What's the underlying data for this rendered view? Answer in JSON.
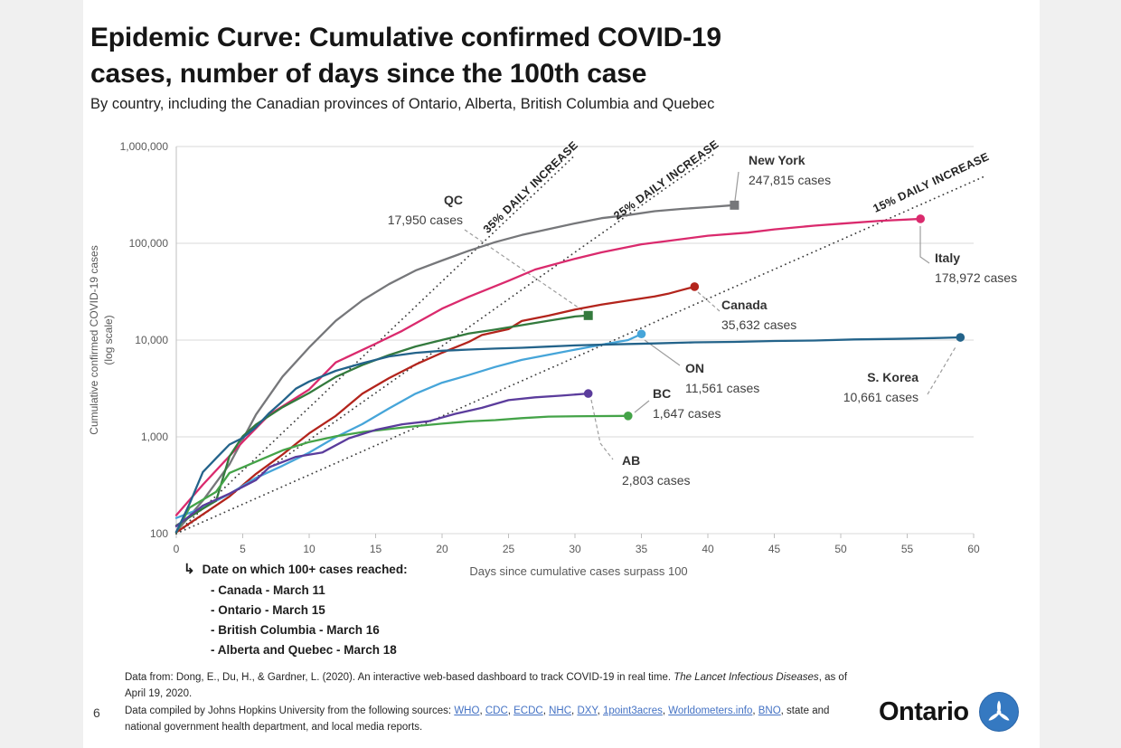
{
  "page": {
    "number": "6"
  },
  "header": {
    "title_line1": "Epidemic Curve: Cumulative confirmed COVID-19",
    "title_line2": "cases, number of days since the 100th case",
    "subtitle": "By country, including the Canadian provinces of Ontario, Alberta, British Columbia and Quebec"
  },
  "chart_data": {
    "type": "line",
    "xlabel": "Days since cumulative cases surpass 100",
    "ylabel": "Cumulative confirmed COVID-19 cases",
    "ylabel_note": "(log scale)",
    "x_ticks": [
      0,
      5,
      10,
      15,
      20,
      25,
      30,
      35,
      40,
      45,
      50,
      55,
      60
    ],
    "xlim": [
      0,
      60
    ],
    "y_scale": "log",
    "ylim": [
      100,
      1000000
    ],
    "y_ticks": [
      {
        "label": "100",
        "v": 100
      },
      {
        "label": "1,000",
        "v": 1000
      },
      {
        "label": "10,000",
        "v": 10000
      },
      {
        "label": "100,000",
        "v": 100000
      },
      {
        "label": "1,000,000",
        "v": 1000000
      }
    ],
    "grid": "horizontal",
    "legend": "end-of-line callout labels",
    "reference_lines": [
      {
        "label": "35% DAILY INCREASE",
        "rate_pct_per_day": 35
      },
      {
        "label": "25% DAILY INCREASE",
        "rate_pct_per_day": 25
      },
      {
        "label": "15% DAILY INCREASE",
        "rate_pct_per_day": 15
      }
    ],
    "series": [
      {
        "name": "New York",
        "label": "New York",
        "final_day": 42,
        "final_cases": 247815,
        "cases_label": "247,815 cases",
        "color": "#76777a",
        "marker": "square",
        "points": [
          [
            0,
            105
          ],
          [
            2,
            220
          ],
          [
            4,
            520
          ],
          [
            6,
            1700
          ],
          [
            8,
            4200
          ],
          [
            10,
            8400
          ],
          [
            12,
            15800
          ],
          [
            14,
            25700
          ],
          [
            16,
            37800
          ],
          [
            18,
            52300
          ],
          [
            20,
            66500
          ],
          [
            22,
            83700
          ],
          [
            24,
            102900
          ],
          [
            26,
            122000
          ],
          [
            28,
            139900
          ],
          [
            30,
            160500
          ],
          [
            32,
            181800
          ],
          [
            34,
            195700
          ],
          [
            36,
            214500
          ],
          [
            38,
            226300
          ],
          [
            40,
            236700
          ],
          [
            42,
            247815
          ]
        ]
      },
      {
        "name": "Italy",
        "label": "Italy",
        "final_day": 56,
        "final_cases": 178972,
        "cases_label": "178,972 cases",
        "color": "#da2a6d",
        "marker": "circle",
        "points": [
          [
            0,
            155
          ],
          [
            2,
            320
          ],
          [
            5,
            888
          ],
          [
            7,
            1694
          ],
          [
            10,
            3089
          ],
          [
            12,
            5883
          ],
          [
            15,
            9172
          ],
          [
            17,
            12462
          ],
          [
            20,
            21157
          ],
          [
            22,
            27980
          ],
          [
            25,
            41035
          ],
          [
            27,
            53578
          ],
          [
            30,
            69176
          ],
          [
            32,
            80589
          ],
          [
            35,
            97689
          ],
          [
            37,
            105792
          ],
          [
            40,
            119827
          ],
          [
            43,
            128948
          ],
          [
            45,
            139422
          ],
          [
            48,
            152271
          ],
          [
            50,
            159516
          ],
          [
            53,
            170945
          ],
          [
            56,
            178972
          ]
        ]
      },
      {
        "name": "Canada",
        "label": "Canada",
        "final_day": 39,
        "final_cases": 35632,
        "cases_label": "35,632 cases",
        "color": "#b3241c",
        "marker": "circle",
        "points": [
          [
            0,
            103
          ],
          [
            2,
            158
          ],
          [
            4,
            242
          ],
          [
            6,
            415
          ],
          [
            8,
            657
          ],
          [
            10,
            1087
          ],
          [
            12,
            1646
          ],
          [
            14,
            2790
          ],
          [
            16,
            4043
          ],
          [
            18,
            5576
          ],
          [
            20,
            7398
          ],
          [
            22,
            9560
          ],
          [
            23,
            11283
          ],
          [
            25,
            12978
          ],
          [
            26,
            15756
          ],
          [
            28,
            17872
          ],
          [
            30,
            20654
          ],
          [
            32,
            23318
          ],
          [
            34,
            25680
          ],
          [
            36,
            28205
          ],
          [
            37,
            30106
          ],
          [
            38,
            32814
          ],
          [
            39,
            35632
          ]
        ]
      },
      {
        "name": "Ontario",
        "label": "ON",
        "final_day": 35,
        "final_cases": 11561,
        "cases_label": "11,561 cases",
        "color": "#46a5d9",
        "marker": "circle",
        "points": [
          [
            0,
            145
          ],
          [
            2,
            185
          ],
          [
            4,
            257
          ],
          [
            6,
            377
          ],
          [
            8,
            503
          ],
          [
            10,
            688
          ],
          [
            12,
            994
          ],
          [
            14,
            1355
          ],
          [
            16,
            1966
          ],
          [
            18,
            2793
          ],
          [
            20,
            3630
          ],
          [
            22,
            4347
          ],
          [
            24,
            5276
          ],
          [
            26,
            6237
          ],
          [
            28,
            7049
          ],
          [
            30,
            7953
          ],
          [
            32,
            8961
          ],
          [
            34,
            10010
          ],
          [
            35,
            11561
          ]
        ]
      },
      {
        "name": "Quebec",
        "label": "QC",
        "final_day": 31,
        "final_cases": 17950,
        "cases_label": "17,950 cases",
        "color": "#337a3d",
        "marker": "square",
        "points": [
          [
            0,
            121
          ],
          [
            2,
            181
          ],
          [
            3,
            219
          ],
          [
            4,
            628
          ],
          [
            5,
            1013
          ],
          [
            6,
            1342
          ],
          [
            8,
            2024
          ],
          [
            10,
            2840
          ],
          [
            12,
            4162
          ],
          [
            14,
            5518
          ],
          [
            16,
            6997
          ],
          [
            18,
            8580
          ],
          [
            20,
            10031
          ],
          [
            22,
            11677
          ],
          [
            24,
            12846
          ],
          [
            26,
            14248
          ],
          [
            28,
            15857
          ],
          [
            30,
            17521
          ],
          [
            31,
            17950
          ]
        ]
      },
      {
        "name": "British Columbia",
        "label": "BC",
        "final_day": 34,
        "final_cases": 1647,
        "cases_label": "1,647 cases",
        "color": "#44a348",
        "marker": "circle",
        "points": [
          [
            0,
            103
          ],
          [
            1,
            186
          ],
          [
            3,
            271
          ],
          [
            4,
            424
          ],
          [
            6,
            554
          ],
          [
            8,
            725
          ],
          [
            10,
            884
          ],
          [
            12,
            1013
          ],
          [
            14,
            1121
          ],
          [
            16,
            1203
          ],
          [
            18,
            1291
          ],
          [
            20,
            1370
          ],
          [
            22,
            1445
          ],
          [
            24,
            1490
          ],
          [
            26,
            1561
          ],
          [
            28,
            1618
          ],
          [
            31,
            1638
          ],
          [
            34,
            1647
          ]
        ]
      },
      {
        "name": "Alberta",
        "label": "AB",
        "final_day": 31,
        "final_cases": 2803,
        "cases_label": "2,803 cases",
        "color": "#5b3c9c",
        "marker": "circle",
        "points": [
          [
            0,
            119
          ],
          [
            2,
            195
          ],
          [
            4,
            259
          ],
          [
            6,
            358
          ],
          [
            7,
            486
          ],
          [
            9,
            621
          ],
          [
            11,
            690
          ],
          [
            13,
            969
          ],
          [
            15,
            1181
          ],
          [
            17,
            1348
          ],
          [
            19,
            1451
          ],
          [
            21,
            1732
          ],
          [
            23,
            1996
          ],
          [
            25,
            2397
          ],
          [
            27,
            2562
          ],
          [
            29,
            2667
          ],
          [
            31,
            2803
          ]
        ]
      },
      {
        "name": "S. Korea",
        "label": "S. Korea",
        "final_day": 59,
        "final_cases": 10661,
        "cases_label": "10,661 cases",
        "color": "#23638a",
        "marker": "circle",
        "points": [
          [
            0,
            104
          ],
          [
            1,
            204
          ],
          [
            2,
            433
          ],
          [
            3,
            602
          ],
          [
            4,
            833
          ],
          [
            5,
            977
          ],
          [
            6,
            1261
          ],
          [
            7,
            1766
          ],
          [
            8,
            2337
          ],
          [
            9,
            3150
          ],
          [
            10,
            3736
          ],
          [
            12,
            4812
          ],
          [
            14,
            5766
          ],
          [
            16,
            6767
          ],
          [
            18,
            7382
          ],
          [
            20,
            7755
          ],
          [
            22,
            7979
          ],
          [
            24,
            8162
          ],
          [
            26,
            8320
          ],
          [
            28,
            8565
          ],
          [
            30,
            8799
          ],
          [
            33,
            9037
          ],
          [
            36,
            9241
          ],
          [
            39,
            9478
          ],
          [
            42,
            9583
          ],
          [
            45,
            9786
          ],
          [
            48,
            9887
          ],
          [
            51,
            10156
          ],
          [
            54,
            10284
          ],
          [
            57,
            10480
          ],
          [
            59,
            10661
          ]
        ]
      }
    ]
  },
  "notes": {
    "arrow_icon": "↳",
    "heading": "Date on which 100+ cases reached:",
    "items": [
      "- Canada - March 11",
      "- Ontario - March 15",
      "- British Columbia - March 16",
      "- Alberta and Quebec - March 18"
    ]
  },
  "footer": {
    "citation_prefix": "Data from: Dong, E., Du, H., & Gardner, L. (2020). An interactive web-based dashboard to track COVID-19 in real time. ",
    "citation_italic": "The Lancet Infectious Diseases",
    "citation_suffix": ", as of April 19, 2020.",
    "compiled_prefix": "Data compiled by Johns Hopkins University from the following sources: ",
    "sources": [
      "WHO",
      "CDC",
      "ECDC",
      "NHC",
      "DXY",
      "1point3acres",
      "Worldometers.info",
      "BNO"
    ],
    "compiled_suffix": ", state and national government health department, and local media reports."
  },
  "logo": {
    "wordmark": "Ontario"
  }
}
